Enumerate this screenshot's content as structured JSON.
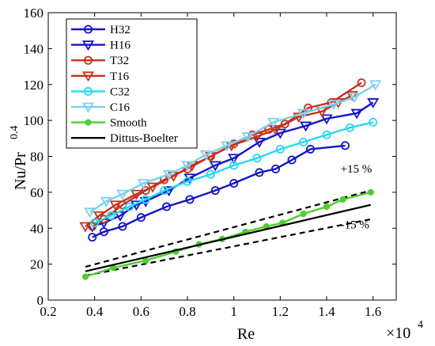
{
  "chart_data": {
    "type": "line",
    "xlabel": "Re",
    "ylabel": "Nu/Pr",
    "ylabel_exponent": "0.4",
    "x_multiplier": "×10",
    "x_multiplier_exponent": "4",
    "xlim": [
      0.2,
      1.7
    ],
    "ylim": [
      0,
      160
    ],
    "x_ticks": [
      0.2,
      0.4,
      0.6,
      0.8,
      1.0,
      1.2,
      1.4,
      1.6
    ],
    "x_tick_labels": [
      "0.2",
      "0.4",
      "0.6",
      "0.8",
      "1",
      "1.2",
      "1.4",
      "1.6"
    ],
    "y_ticks": [
      0,
      20,
      40,
      60,
      80,
      100,
      120,
      140,
      160
    ],
    "y_tick_labels": [
      "0",
      "20",
      "40",
      "60",
      "80",
      "100",
      "120",
      "140",
      "160"
    ],
    "grid": false,
    "legend_position": "top-left",
    "series": [
      {
        "name": "H32",
        "color": "#1515c8",
        "marker": "circle",
        "x": [
          0.39,
          0.44,
          0.52,
          0.6,
          0.71,
          0.81,
          0.92,
          1.0,
          1.11,
          1.18,
          1.25,
          1.33,
          1.48
        ],
        "y": [
          35,
          38,
          41,
          46,
          52,
          56,
          61,
          65,
          71,
          73,
          78,
          84,
          86
        ]
      },
      {
        "name": "H16",
        "color": "#1515c8",
        "marker": "triangle-down",
        "x": [
          0.39,
          0.44,
          0.51,
          0.58,
          0.62,
          0.72,
          0.81,
          0.92,
          1.0,
          1.11,
          1.2,
          1.31,
          1.4,
          1.53,
          1.6
        ],
        "y": [
          41,
          43,
          47,
          53,
          55,
          61,
          68,
          75,
          79,
          88,
          93,
          97,
          101,
          104,
          110
        ]
      },
      {
        "name": "T32",
        "color": "#c8321e",
        "marker": "circle",
        "x": [
          0.39,
          0.44,
          0.52,
          0.62,
          0.7,
          0.8,
          0.9,
          1.0,
          1.08,
          1.15,
          1.22,
          1.32,
          1.42,
          1.55
        ],
        "y": [
          41,
          45,
          53,
          61,
          67,
          73,
          80,
          87,
          92,
          95,
          98,
          107,
          110,
          121
        ]
      },
      {
        "name": "T16",
        "color": "#c8321e",
        "marker": "triangle-down",
        "x": [
          0.36,
          0.42,
          0.49,
          0.58,
          0.65,
          0.74,
          0.82,
          0.9,
          0.99,
          1.1,
          1.18,
          1.28,
          1.38,
          1.45,
          1.51
        ],
        "y": [
          41,
          47,
          53,
          59,
          63,
          69,
          75,
          80,
          86,
          91,
          95,
          102,
          105,
          110,
          114
        ]
      },
      {
        "name": "C32",
        "color": "#27d9f2",
        "marker": "circle",
        "x": [
          0.4,
          0.47,
          0.55,
          0.62,
          0.7,
          0.8,
          0.9,
          1.0,
          1.1,
          1.2,
          1.3,
          1.4,
          1.5,
          1.6
        ],
        "y": [
          43,
          47,
          52,
          56,
          61,
          66,
          70,
          75,
          79,
          84,
          88,
          92,
          96,
          99
        ]
      },
      {
        "name": "C16",
        "color": "#78d2f0",
        "marker": "triangle-down",
        "x": [
          0.38,
          0.45,
          0.52,
          0.61,
          0.72,
          0.8,
          0.88,
          0.97,
          1.06,
          1.17,
          1.3,
          1.43,
          1.52,
          1.61
        ],
        "y": [
          49,
          55,
          59,
          65,
          70,
          75,
          81,
          86,
          91,
          99,
          104,
          109,
          113,
          120
        ]
      },
      {
        "name": "Smooth",
        "color": "#4fce2c",
        "marker": "filled-circle",
        "x": [
          0.36,
          0.48,
          0.62,
          0.75,
          0.85,
          0.95,
          1.05,
          1.14,
          1.21,
          1.3,
          1.4,
          1.47,
          1.59
        ],
        "y": [
          13,
          18,
          22,
          27,
          31,
          34,
          38,
          41,
          43,
          48,
          52,
          56,
          60
        ]
      },
      {
        "name": "Dittus-Boelter",
        "color": "#000000",
        "marker": "none",
        "x": [
          0.36,
          1.59
        ],
        "y": [
          16,
          53
        ]
      }
    ],
    "reference_lines": [
      {
        "style": "dashed",
        "color": "#000000",
        "x": [
          0.36,
          1.59
        ],
        "y": [
          18.5,
          61
        ]
      },
      {
        "style": "dashed",
        "color": "#000000",
        "x": [
          0.36,
          1.59
        ],
        "y": [
          13.6,
          45
        ]
      }
    ],
    "annotations": [
      {
        "text": "+15 %",
        "x": 1.46,
        "y": 71
      },
      {
        "text": "-15 %",
        "x": 1.46,
        "y": 40
      }
    ]
  }
}
